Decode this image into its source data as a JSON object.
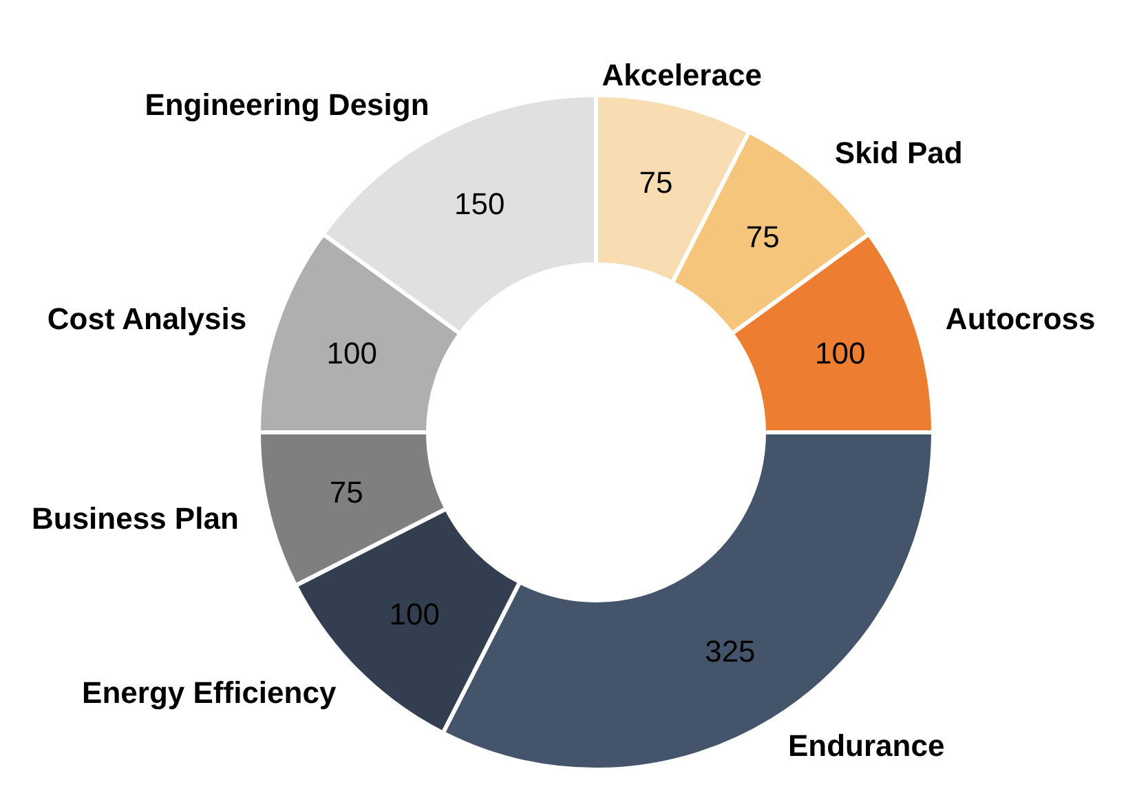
{
  "chart_data": {
    "type": "donut",
    "categories": [
      "Akcelerace",
      "Skid Pad",
      "Autocross",
      "Endurance",
      "Energy Efficiency",
      "Business Plan",
      "Cost Analysis",
      "Engineering Design"
    ],
    "values": [
      75,
      75,
      100,
      325,
      100,
      75,
      100,
      150
    ],
    "colors": [
      "#f8ddb3",
      "#f4c57a",
      "#ed7d31",
      "#44546a",
      "#333f50",
      "#7f7f7f",
      "#afafaf",
      "#e0e0e0"
    ],
    "data_labels": true,
    "legend": false
  }
}
